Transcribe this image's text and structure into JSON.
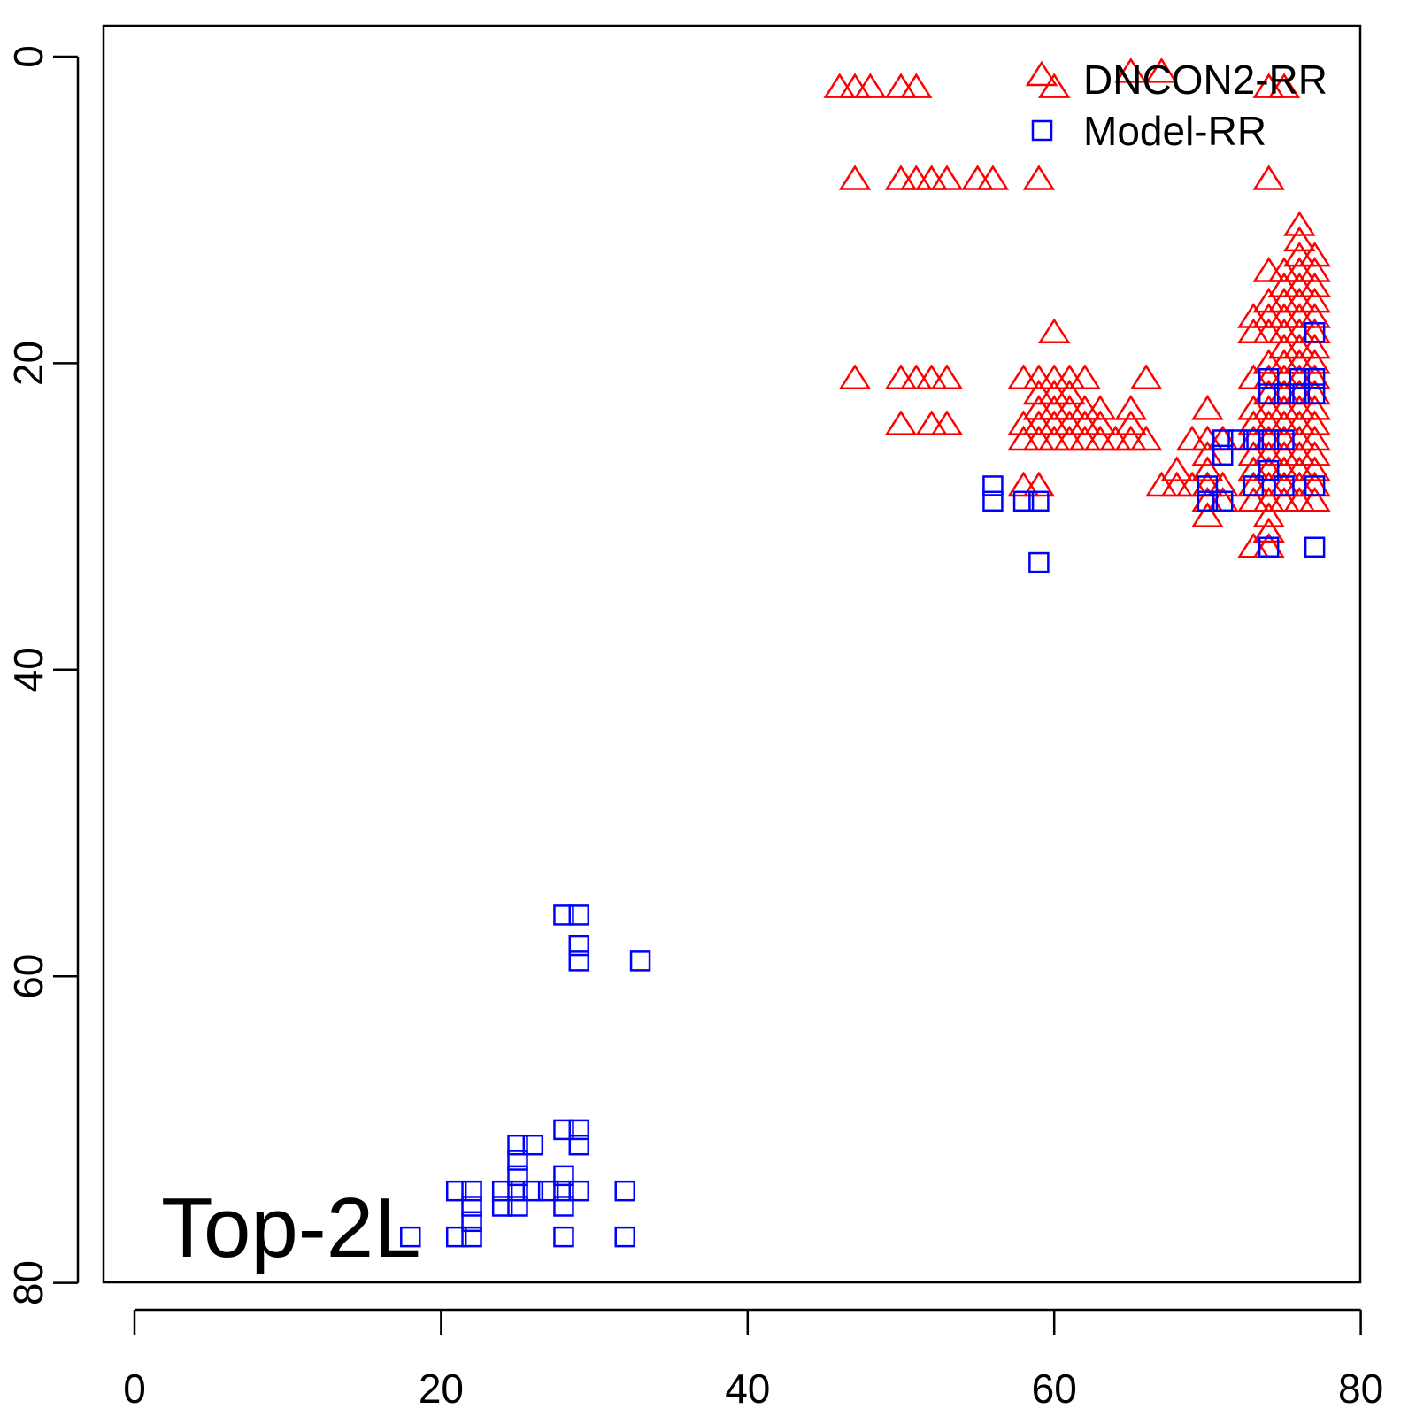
{
  "chart_data": {
    "type": "scatter",
    "title": "",
    "xlabel": "",
    "ylabel": "",
    "xlim": [
      -2,
      80
    ],
    "ylim": [
      80,
      -2
    ],
    "y_reversed": true,
    "x_ticks": [
      "0",
      "20",
      "40",
      "60",
      "80"
    ],
    "y_ticks": [
      "0",
      "20",
      "40",
      "60",
      "80"
    ],
    "grid": false,
    "legend_position": "top-right",
    "annotation": "Top-2L",
    "series": [
      {
        "name": "DNCON2-RR",
        "marker": "triangle",
        "color": "#ff0000",
        "rows": [
          {
            "y": 1,
            "x": [
              65,
              67
            ]
          },
          {
            "y": 2,
            "x": [
              46,
              47,
              48,
              50,
              51,
              60,
              74,
              75
            ]
          },
          {
            "y": 8,
            "x": [
              47,
              50,
              51,
              52,
              53,
              55,
              56,
              59,
              74
            ]
          },
          {
            "y": 11,
            "x": [
              76
            ]
          },
          {
            "y": 12,
            "x": [
              76
            ]
          },
          {
            "y": 13,
            "x": [
              76,
              77
            ]
          },
          {
            "y": 14,
            "x": [
              74,
              75,
              76,
              77
            ]
          },
          {
            "y": 15,
            "x": [
              75,
              76,
              77
            ]
          },
          {
            "y": 16,
            "x": [
              74,
              75,
              76,
              77
            ]
          },
          {
            "y": 17,
            "x": [
              73,
              74,
              75,
              76,
              77
            ]
          },
          {
            "y": 18,
            "x": [
              60,
              73,
              74,
              75,
              76,
              77
            ]
          },
          {
            "y": 19,
            "x": [
              75,
              76,
              77
            ]
          },
          {
            "y": 20,
            "x": [
              74,
              75,
              76,
              77
            ]
          },
          {
            "y": 21,
            "x": [
              47,
              50,
              51,
              52,
              53,
              58,
              59,
              60,
              61,
              62,
              66,
              73,
              74,
              75,
              76,
              77
            ]
          },
          {
            "y": 22,
            "x": [
              59,
              60,
              61,
              74,
              75,
              76,
              77
            ]
          },
          {
            "y": 23,
            "x": [
              59,
              60,
              61,
              62,
              63,
              65,
              70,
              73,
              74,
              75,
              76,
              77
            ]
          },
          {
            "y": 24,
            "x": [
              50,
              52,
              53,
              58,
              59,
              60,
              61,
              62,
              63,
              65,
              73,
              74,
              75,
              76,
              77
            ]
          },
          {
            "y": 25,
            "x": [
              58,
              59,
              60,
              61,
              62,
              63,
              64,
              65,
              66,
              69,
              70,
              71,
              73,
              74,
              75,
              76,
              77
            ]
          },
          {
            "y": 26,
            "x": [
              70,
              73,
              74,
              75,
              76,
              77
            ]
          },
          {
            "y": 27,
            "x": [
              68,
              70,
              73,
              74,
              75,
              76,
              77
            ]
          },
          {
            "y": 28,
            "x": [
              58,
              59,
              67,
              68,
              69,
              70,
              71,
              73,
              74,
              75,
              76,
              77
            ]
          },
          {
            "y": 29,
            "x": [
              70,
              71,
              73,
              74,
              75,
              76,
              77
            ]
          },
          {
            "y": 30,
            "x": [
              70,
              74
            ]
          },
          {
            "y": 31,
            "x": [
              74
            ]
          },
          {
            "y": 32,
            "x": [
              73,
              74
            ]
          }
        ]
      },
      {
        "name": "Model-RR",
        "marker": "square",
        "color": "#0000ff",
        "points": [
          [
            56,
            28
          ],
          [
            56,
            29
          ],
          [
            58,
            29
          ],
          [
            59,
            29
          ],
          [
            59,
            33
          ],
          [
            71,
            25
          ],
          [
            71,
            26
          ],
          [
            72,
            25
          ],
          [
            73,
            25
          ],
          [
            70,
            28
          ],
          [
            70,
            29
          ],
          [
            71,
            29
          ],
          [
            74,
            21
          ],
          [
            74,
            22
          ],
          [
            74,
            25
          ],
          [
            74,
            27
          ],
          [
            74,
            32
          ],
          [
            75,
            22
          ],
          [
            75,
            25
          ],
          [
            76,
            21
          ],
          [
            76,
            22
          ],
          [
            77,
            18
          ],
          [
            77,
            21
          ],
          [
            77,
            22
          ],
          [
            77,
            28
          ],
          [
            77,
            32
          ],
          [
            73,
            28
          ],
          [
            75,
            28
          ],
          [
            28,
            56
          ],
          [
            29,
            56
          ],
          [
            29,
            58
          ],
          [
            29,
            59
          ],
          [
            33,
            59
          ],
          [
            28,
            70
          ],
          [
            29,
            70
          ],
          [
            25,
            71
          ],
          [
            26,
            71
          ],
          [
            29,
            71
          ],
          [
            25,
            72
          ],
          [
            25,
            73
          ],
          [
            28,
            73
          ],
          [
            21,
            74
          ],
          [
            22,
            74
          ],
          [
            24,
            74
          ],
          [
            25,
            74
          ],
          [
            26,
            74
          ],
          [
            27,
            74
          ],
          [
            28,
            74
          ],
          [
            29,
            74
          ],
          [
            32,
            74
          ],
          [
            22,
            75
          ],
          [
            24,
            75
          ],
          [
            25,
            75
          ],
          [
            28,
            75
          ],
          [
            22,
            76
          ],
          [
            18,
            77
          ],
          [
            21,
            77
          ],
          [
            22,
            77
          ],
          [
            28,
            77
          ],
          [
            32,
            77
          ]
        ]
      }
    ]
  }
}
